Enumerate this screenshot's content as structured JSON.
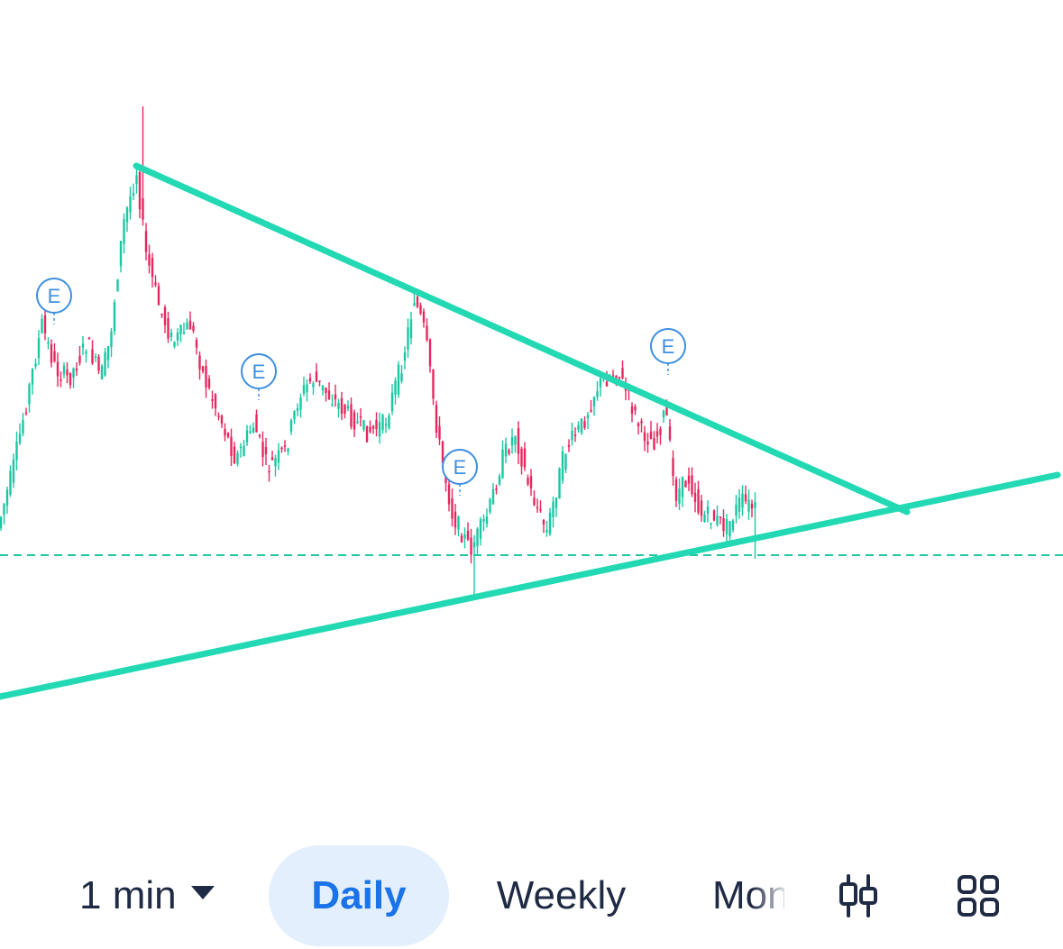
{
  "colors": {
    "up_candle": "#19c7a3",
    "down_candle": "#e8265e",
    "trendline": "#22d9b4",
    "price_line": "#22c7a0",
    "earnings_marker": "#3d8fe0",
    "active_tab_bg": "#e3effd",
    "active_tab_text": "#1a73e8",
    "toolbar_text": "#1f2a44"
  },
  "earnings_markers": [
    {
      "label": "E",
      "bar": 14
    },
    {
      "label": "E",
      "bar": 66
    },
    {
      "label": "E",
      "bar": 117
    },
    {
      "label": "E",
      "bar": 168
    }
  ],
  "toolbar": {
    "interval_label": "1 min",
    "tabs": [
      {
        "label": "Daily",
        "active": true
      },
      {
        "label": "Weekly",
        "active": false
      },
      {
        "label": "Mon",
        "active": false
      }
    ],
    "chart_type_icon": "candlestick-icon",
    "layout_icon": "grid-layout-icon"
  }
}
